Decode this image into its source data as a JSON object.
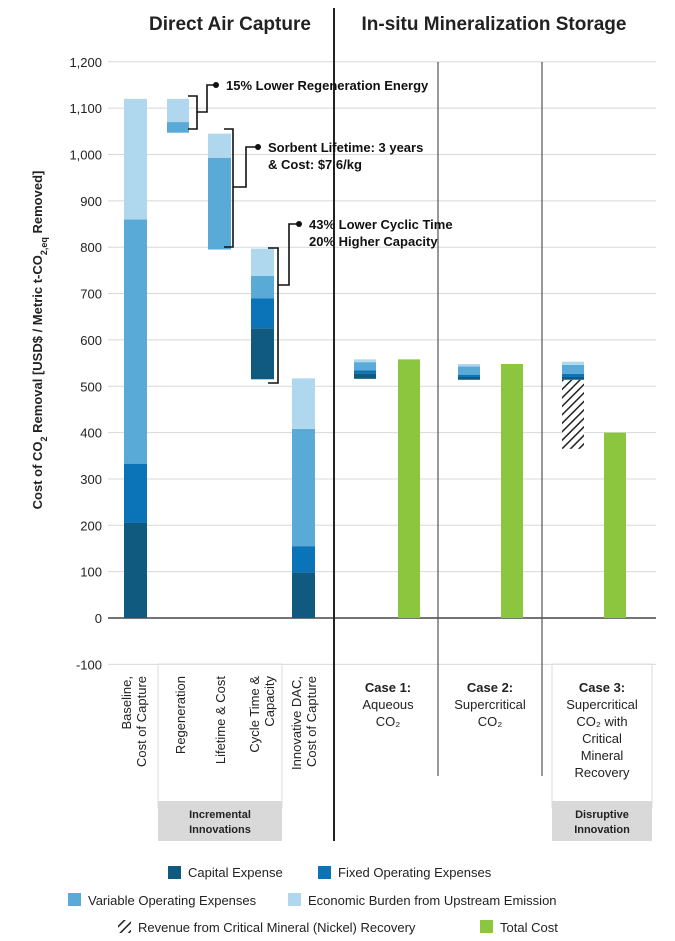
{
  "colors": {
    "capital": "#0f5a7e",
    "fixed": "#0b74b8",
    "variable": "#5aaad8",
    "upstream": "#afd8ee",
    "total": "#8cc63f",
    "group_box": "#d9d9d9"
  },
  "panels": {
    "left_title": "Direct Air Capture",
    "right_title": "In-situ Mineralization Storage"
  },
  "chart_data": {
    "type": "bar",
    "ylabel": "Cost of CO₂ Removal [USD$ / Metric t-CO₂eq Removed]",
    "ylabel_main": "Cost of CO",
    "ylabel_sub1": "2",
    "ylabel_mid": " Removal [USD$ / Metric t-CO",
    "ylabel_sub2": "2,eq",
    "ylabel_end": " Removed]",
    "ylim": [
      -100,
      1200
    ],
    "yticks": [
      -100,
      0,
      100,
      200,
      300,
      400,
      500,
      600,
      700,
      800,
      900,
      1000,
      1100,
      1200
    ],
    "grid": true,
    "categories": [
      "Baseline, Cost of Capture",
      "Regeneration",
      "Lifetime & Cost",
      "Cycle Time & Capacity",
      "Innovative DAC, Cost of Capture",
      "Case 1: Aqueous CO2",
      "Case 2: Supercritical CO2",
      "Case 3: Supercritical CO2 with Critical Mineral Recovery"
    ],
    "bars": [
      {
        "category": "Baseline, Cost of Capture",
        "segments": [
          {
            "series": "Capital Expense",
            "from": 0,
            "to": 205
          },
          {
            "series": "Fixed Operating Expenses",
            "from": 205,
            "to": 333
          },
          {
            "series": "Variable Operating Expenses",
            "from": 333,
            "to": 860
          },
          {
            "series": "Economic Burden from Upstream Emission",
            "from": 860,
            "to": 1120
          }
        ]
      },
      {
        "category": "Regeneration",
        "segments": [
          {
            "series": "Variable Operating Expenses",
            "from": 1047,
            "to": 1070
          },
          {
            "series": "Economic Burden from Upstream Emission",
            "from": 1070,
            "to": 1120
          }
        ]
      },
      {
        "category": "Lifetime & Cost",
        "segments": [
          {
            "series": "Variable Operating Expenses",
            "from": 795,
            "to": 993
          },
          {
            "series": "Economic Burden from Upstream Emission",
            "from": 993,
            "to": 1045
          }
        ]
      },
      {
        "category": "Cycle Time & Capacity",
        "segments": [
          {
            "series": "Capital Expense",
            "from": 515,
            "to": 625
          },
          {
            "series": "Fixed Operating Expenses",
            "from": 625,
            "to": 690
          },
          {
            "series": "Variable Operating Expenses",
            "from": 690,
            "to": 738
          },
          {
            "series": "Economic Burden from Upstream Emission",
            "from": 738,
            "to": 797
          }
        ]
      },
      {
        "category": "Innovative DAC, Cost of Capture",
        "segments": [
          {
            "series": "Capital Expense",
            "from": 0,
            "to": 98
          },
          {
            "series": "Fixed Operating Expenses",
            "from": 98,
            "to": 155
          },
          {
            "series": "Variable Operating Expenses",
            "from": 155,
            "to": 408
          },
          {
            "series": "Economic Burden from Upstream Emission",
            "from": 408,
            "to": 517
          }
        ]
      },
      {
        "category": "Case 1: Aqueous CO2",
        "segments": [
          {
            "series": "Capital Expense",
            "from": 516,
            "to": 528
          },
          {
            "series": "Fixed Operating Expenses",
            "from": 528,
            "to": 534
          },
          {
            "series": "Variable Operating Expenses",
            "from": 534,
            "to": 552
          },
          {
            "series": "Economic Burden from Upstream Emission",
            "from": 552,
            "to": 558
          }
        ]
      },
      {
        "category": "Case 1: Aqueous CO2",
        "total": true,
        "segments": [
          {
            "series": "Total Cost",
            "from": 0,
            "to": 558
          }
        ]
      },
      {
        "category": "Case 2: Supercritical CO2",
        "segments": [
          {
            "series": "Capital Expense",
            "from": 514,
            "to": 520
          },
          {
            "series": "Fixed Operating Expenses",
            "from": 520,
            "to": 525
          },
          {
            "series": "Variable Operating Expenses",
            "from": 525,
            "to": 543
          },
          {
            "series": "Economic Burden from Upstream Emission",
            "from": 543,
            "to": 548
          }
        ]
      },
      {
        "category": "Case 2: Supercritical CO2",
        "total": true,
        "segments": [
          {
            "series": "Total Cost",
            "from": 0,
            "to": 548
          }
        ]
      },
      {
        "category": "Case 3: Supercritical CO2 with Critical Mineral Recovery",
        "segments": [
          {
            "series": "Revenue from Critical Mineral (Nickel) Recovery",
            "from": 365,
            "to": 514
          },
          {
            "series": "Capital Expense",
            "from": 514,
            "to": 520
          },
          {
            "series": "Fixed Operating Expenses",
            "from": 520,
            "to": 527
          },
          {
            "series": "Variable Operating Expenses",
            "from": 527,
            "to": 546
          },
          {
            "series": "Economic Burden from Upstream Emission",
            "from": 546,
            "to": 553
          }
        ]
      },
      {
        "category": "Case 3: Supercritical CO2 with Critical Mineral Recovery",
        "total": true,
        "segments": [
          {
            "series": "Total Cost",
            "from": 0,
            "to": 400
          }
        ]
      }
    ],
    "annotations": [
      {
        "line1": "15% Lower Regeneration Energy",
        "line2": ""
      },
      {
        "line1": "Sorbent Lifetime: 3 years",
        "line2": "& Cost: $7.6/kg"
      },
      {
        "line1": "43% Lower Cyclic Time",
        "line2": "20% Higher Capacity"
      }
    ],
    "legend": [
      "Capital Expense",
      "Fixed Operating Expenses",
      "Variable Operating Expenses",
      "Economic Burden from Upstream Emission",
      "Revenue from Critical Mineral (Nickel) Recovery",
      "Total Cost"
    ]
  },
  "labels": {
    "baseline": [
      "Baseline,",
      "Cost of Capture"
    ],
    "regeneration": [
      "Regeneration"
    ],
    "lifetime": [
      "Lifetime & Cost"
    ],
    "cycle": [
      "Cycle Time &",
      "Capacity"
    ],
    "innovative": [
      "Innovative DAC,",
      "Cost of Capture"
    ],
    "case1_title": "Case 1:",
    "case1_body": [
      "Aqueous",
      "CO₂"
    ],
    "case2_title": "Case 2:",
    "case2_body": [
      "Supercritical",
      "CO₂"
    ],
    "case3_title": "Case 3:",
    "case3_body": [
      "Supercritical",
      "CO₂ with",
      "Critical",
      "Mineral",
      "Recovery"
    ],
    "group_incremental": [
      "Incremental",
      "Innovations"
    ],
    "group_disruptive": [
      "Disruptive",
      "Innovation"
    ]
  }
}
